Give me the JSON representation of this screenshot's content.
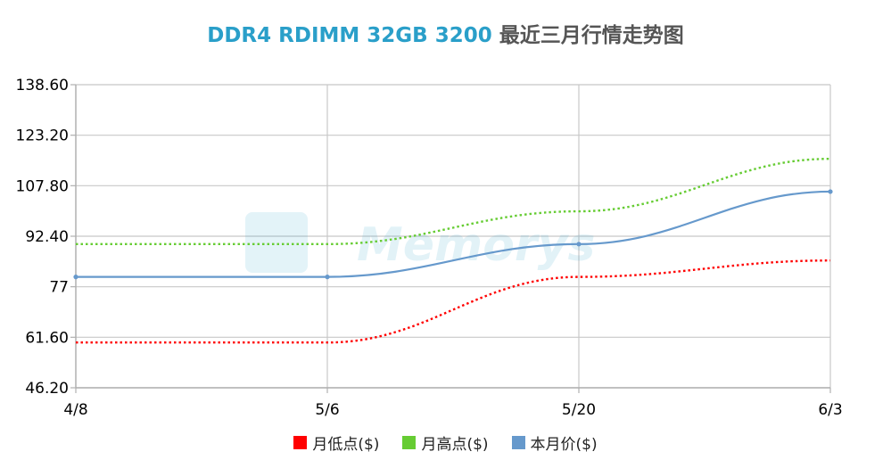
{
  "title": {
    "accent": "DDR4 RDIMM 32GB 3200",
    "rest": "最近三月行情走势图"
  },
  "watermark": "Memorys",
  "chart_data": {
    "type": "line",
    "title": "DDR4 RDIMM 32GB 3200 最近三月行情走势图",
    "x": [
      "4/8",
      "5/6",
      "5/20",
      "6/3"
    ],
    "y_ticks": [
      "46.20",
      "61.60",
      "77",
      "92.40",
      "107.80",
      "123.20",
      "138.60"
    ],
    "ylim": [
      46.2,
      138.6
    ],
    "grid": true,
    "legend_position": "bottom",
    "series": [
      {
        "name": "月低点($)",
        "values": [
          60,
          60,
          80,
          85
        ],
        "color": "#ff0000",
        "style": "dotted"
      },
      {
        "name": "月高点($)",
        "values": [
          90,
          90,
          100,
          116
        ],
        "color": "#66cc33",
        "style": "dotted"
      },
      {
        "name": "本月价($)",
        "values": [
          80,
          80,
          90,
          106
        ],
        "color": "#6699cc",
        "style": "solid"
      }
    ]
  }
}
